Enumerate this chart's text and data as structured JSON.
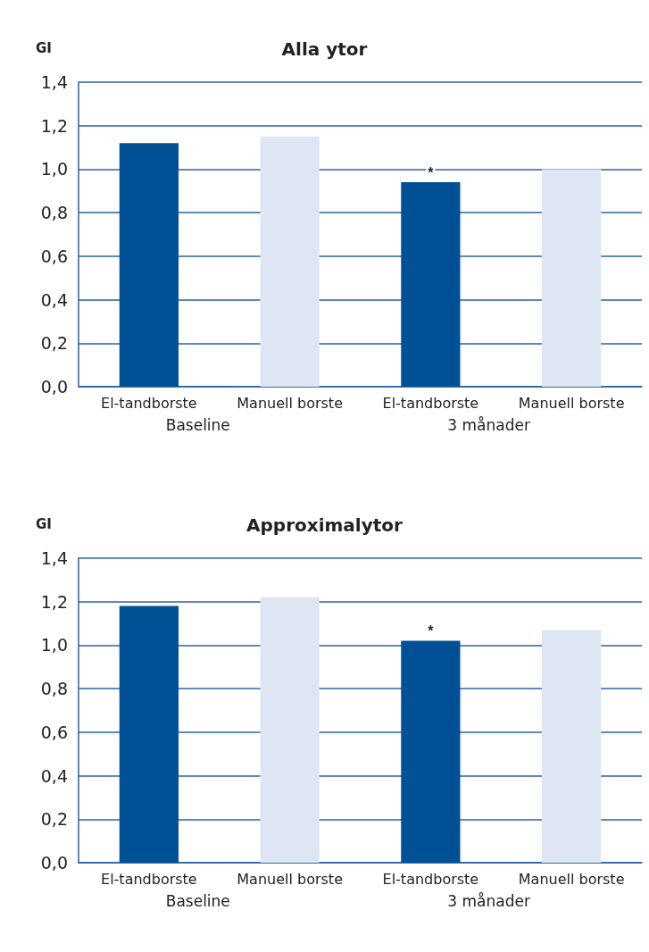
{
  "chart_data": [
    {
      "type": "bar",
      "title": "Alla ytor",
      "ylabel": "GI",
      "categories": [
        "El-tandborste",
        "Manuell borste",
        "El-tandborste",
        "Manuell borste"
      ],
      "values": [
        1.12,
        1.15,
        0.94,
        1.0
      ],
      "colors": [
        "#005096",
        "#dfe6f3",
        "#005096",
        "#dfe6f3"
      ],
      "value_labels": [
        null,
        null,
        "*",
        null
      ],
      "ylim": [
        0,
        1.4
      ],
      "yticks": [
        {
          "value": 0,
          "label": "0,0"
        },
        {
          "value": 0.2,
          "label": "0,2"
        },
        {
          "value": 0.4,
          "label": "0,4"
        },
        {
          "value": 0.6,
          "label": "0,6"
        },
        {
          "value": 0.8,
          "label": "0,8"
        },
        {
          "value": 1.0,
          "label": "1,0"
        },
        {
          "value": 1.2,
          "label": "1,2"
        },
        {
          "value": 1.4,
          "label": "1,4"
        }
      ],
      "grid": "y",
      "annotations": [
        "Baseline",
        "3 månader"
      ]
    },
    {
      "type": "bar",
      "title": "Approximalytor",
      "ylabel": "GI",
      "categories": [
        "El-tandborste",
        "Manuell borste",
        "El-tandborste",
        "Manuell borste"
      ],
      "values": [
        1.18,
        1.22,
        1.02,
        1.07
      ],
      "colors": [
        "#005096",
        "#dfe6f3",
        "#005096",
        "#dfe6f3"
      ],
      "value_labels": [
        null,
        null,
        "*",
        null
      ],
      "ylim": [
        0,
        1.4
      ],
      "yticks": [
        {
          "value": 0,
          "label": "0,0"
        },
        {
          "value": 0.2,
          "label": "0,2"
        },
        {
          "value": 0.4,
          "label": "0,4"
        },
        {
          "value": 0.6,
          "label": "0,6"
        },
        {
          "value": 0.8,
          "label": "0,8"
        },
        {
          "value": 1.0,
          "label": "1,0"
        },
        {
          "value": 1.2,
          "label": "1,2"
        },
        {
          "value": 1.4,
          "label": "1,4"
        }
      ],
      "grid": "y",
      "annotations": [
        "Baseline",
        "3 månader"
      ]
    }
  ]
}
